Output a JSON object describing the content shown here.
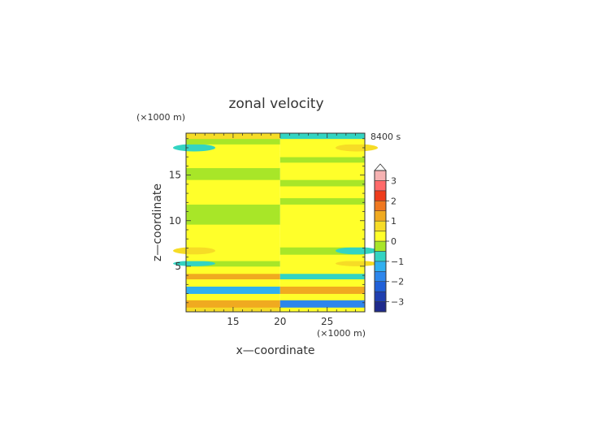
{
  "chart_data": {
    "type": "heatmap",
    "title": "zonal velocity",
    "time_label": "8400 s",
    "xlabel": "x—coordinate",
    "ylabel": "z—coordinate",
    "x_unit": "(×1000 m)",
    "y_unit": "(×1000 m)",
    "xlim": [
      10,
      29
    ],
    "ylim": [
      0,
      19.6
    ],
    "x_ticks": [
      15,
      20,
      25
    ],
    "y_ticks": [
      5,
      10,
      15
    ],
    "colorbar": {
      "tick_values": [
        -3,
        -2,
        -1,
        0,
        1,
        2,
        3
      ],
      "tick_labels": [
        "−3",
        "−2",
        "−1",
        "0",
        "1",
        "2",
        "3"
      ],
      "levels": [
        {
          "lo": -3.5,
          "hi": -3.0,
          "color": "#1e2a8c"
        },
        {
          "lo": -3.0,
          "hi": -2.5,
          "color": "#1f3fb0"
        },
        {
          "lo": -2.5,
          "hi": -2.0,
          "color": "#2060d8"
        },
        {
          "lo": -2.0,
          "hi": -1.5,
          "color": "#2d86ec"
        },
        {
          "lo": -1.5,
          "hi": -1.0,
          "color": "#30b0f0"
        },
        {
          "lo": -1.0,
          "hi": -0.5,
          "color": "#33d4c2"
        },
        {
          "lo": -0.5,
          "hi": 0.0,
          "color": "#a8e628"
        },
        {
          "lo": 0.0,
          "hi": 0.5,
          "color": "#ffff2a"
        },
        {
          "lo": 0.5,
          "hi": 1.0,
          "color": "#f6dc26"
        },
        {
          "lo": 1.0,
          "hi": 1.5,
          "color": "#f0aa20"
        },
        {
          "lo": 1.5,
          "hi": 2.0,
          "color": "#f07820"
        },
        {
          "lo": 2.0,
          "hi": 2.5,
          "color": "#ee3c1c"
        },
        {
          "lo": 2.5,
          "hi": 3.0,
          "color": "#ff6a6a"
        },
        {
          "lo": 3.0,
          "hi": 3.5,
          "color": "#f6b2b2"
        }
      ]
    },
    "bands": [
      {
        "z0": 0.0,
        "z1": 0.5,
        "left": 0.7,
        "right": 0.3,
        "edge_l": 0,
        "edge_r": 0
      },
      {
        "z0": 0.5,
        "z1": 1.3,
        "left": 1.2,
        "right": -1.6,
        "edge_l": 0,
        "edge_r": 0
      },
      {
        "z0": 1.3,
        "z1": 2.0,
        "left": 0.3,
        "right": 0.3,
        "edge_l": 0,
        "edge_r": 0
      },
      {
        "z0": 2.0,
        "z1": 2.8,
        "left": -1.1,
        "right": 1.3,
        "edge_l": 0,
        "edge_r": 0
      },
      {
        "z0": 2.8,
        "z1": 3.6,
        "left": 0.3,
        "right": 0.3,
        "edge_l": 0,
        "edge_r": 0
      },
      {
        "z0": 3.6,
        "z1": 4.2,
        "left": 1.1,
        "right": -1.0,
        "edge_l": 0,
        "edge_r": 0
      },
      {
        "z0": 4.2,
        "z1": 5.0,
        "left": 0.3,
        "right": 0.2,
        "edge_l": 0,
        "edge_r": 0
      },
      {
        "z0": 5.0,
        "z1": 5.6,
        "left": -0.3,
        "right": 0.3,
        "edge_l": -1.0,
        "edge_r": 0.7
      },
      {
        "z0": 5.6,
        "z1": 6.3,
        "left": 0.4,
        "right": 0.2,
        "edge_l": 0,
        "edge_r": 0
      },
      {
        "z0": 6.3,
        "z1": 7.1,
        "left": 0.3,
        "right": -0.3,
        "edge_l": 0.8,
        "edge_r": -1.0
      },
      {
        "z0": 7.1,
        "z1": 8.5,
        "left": 0.3,
        "right": 0.3,
        "edge_l": 0,
        "edge_r": 0
      },
      {
        "z0": 8.5,
        "z1": 9.6,
        "left": 0.3,
        "right": 0.3,
        "edge_l": 0,
        "edge_r": 0
      },
      {
        "z0": 9.6,
        "z1": 11.8,
        "left": -0.3,
        "right": 0.3,
        "edge_l": 0,
        "edge_r": 0
      },
      {
        "z0": 11.8,
        "z1": 12.5,
        "left": 0.3,
        "right": -0.3,
        "edge_l": 0,
        "edge_r": 0
      },
      {
        "z0": 12.5,
        "z1": 13.8,
        "left": 0.3,
        "right": 0.3,
        "edge_l": 0,
        "edge_r": 0
      },
      {
        "z0": 13.8,
        "z1": 14.5,
        "left": 0.3,
        "right": -0.3,
        "edge_l": 0,
        "edge_r": 0
      },
      {
        "z0": 14.5,
        "z1": 15.8,
        "left": -0.3,
        "right": 0.3,
        "edge_l": 0,
        "edge_r": 0
      },
      {
        "z0": 15.8,
        "z1": 16.4,
        "left": 0.3,
        "right": 0.3,
        "edge_l": 0,
        "edge_r": 0
      },
      {
        "z0": 16.4,
        "z1": 17.0,
        "left": 0.3,
        "right": -0.3,
        "edge_l": 0,
        "edge_r": 0
      },
      {
        "z0": 17.0,
        "z1": 17.6,
        "left": 0.3,
        "right": 0.3,
        "edge_l": 0,
        "edge_r": 0
      },
      {
        "z0": 17.6,
        "z1": 18.4,
        "left": 0.3,
        "right": 0.3,
        "edge_l": -1.0,
        "edge_r": 0.8
      },
      {
        "z0": 18.4,
        "z1": 19.0,
        "left": -0.3,
        "right": 0.3,
        "edge_l": 0,
        "edge_r": 0
      },
      {
        "z0": 19.0,
        "z1": 19.6,
        "left": 0.7,
        "right": -0.6,
        "edge_l": 0,
        "edge_r": 0
      }
    ]
  }
}
